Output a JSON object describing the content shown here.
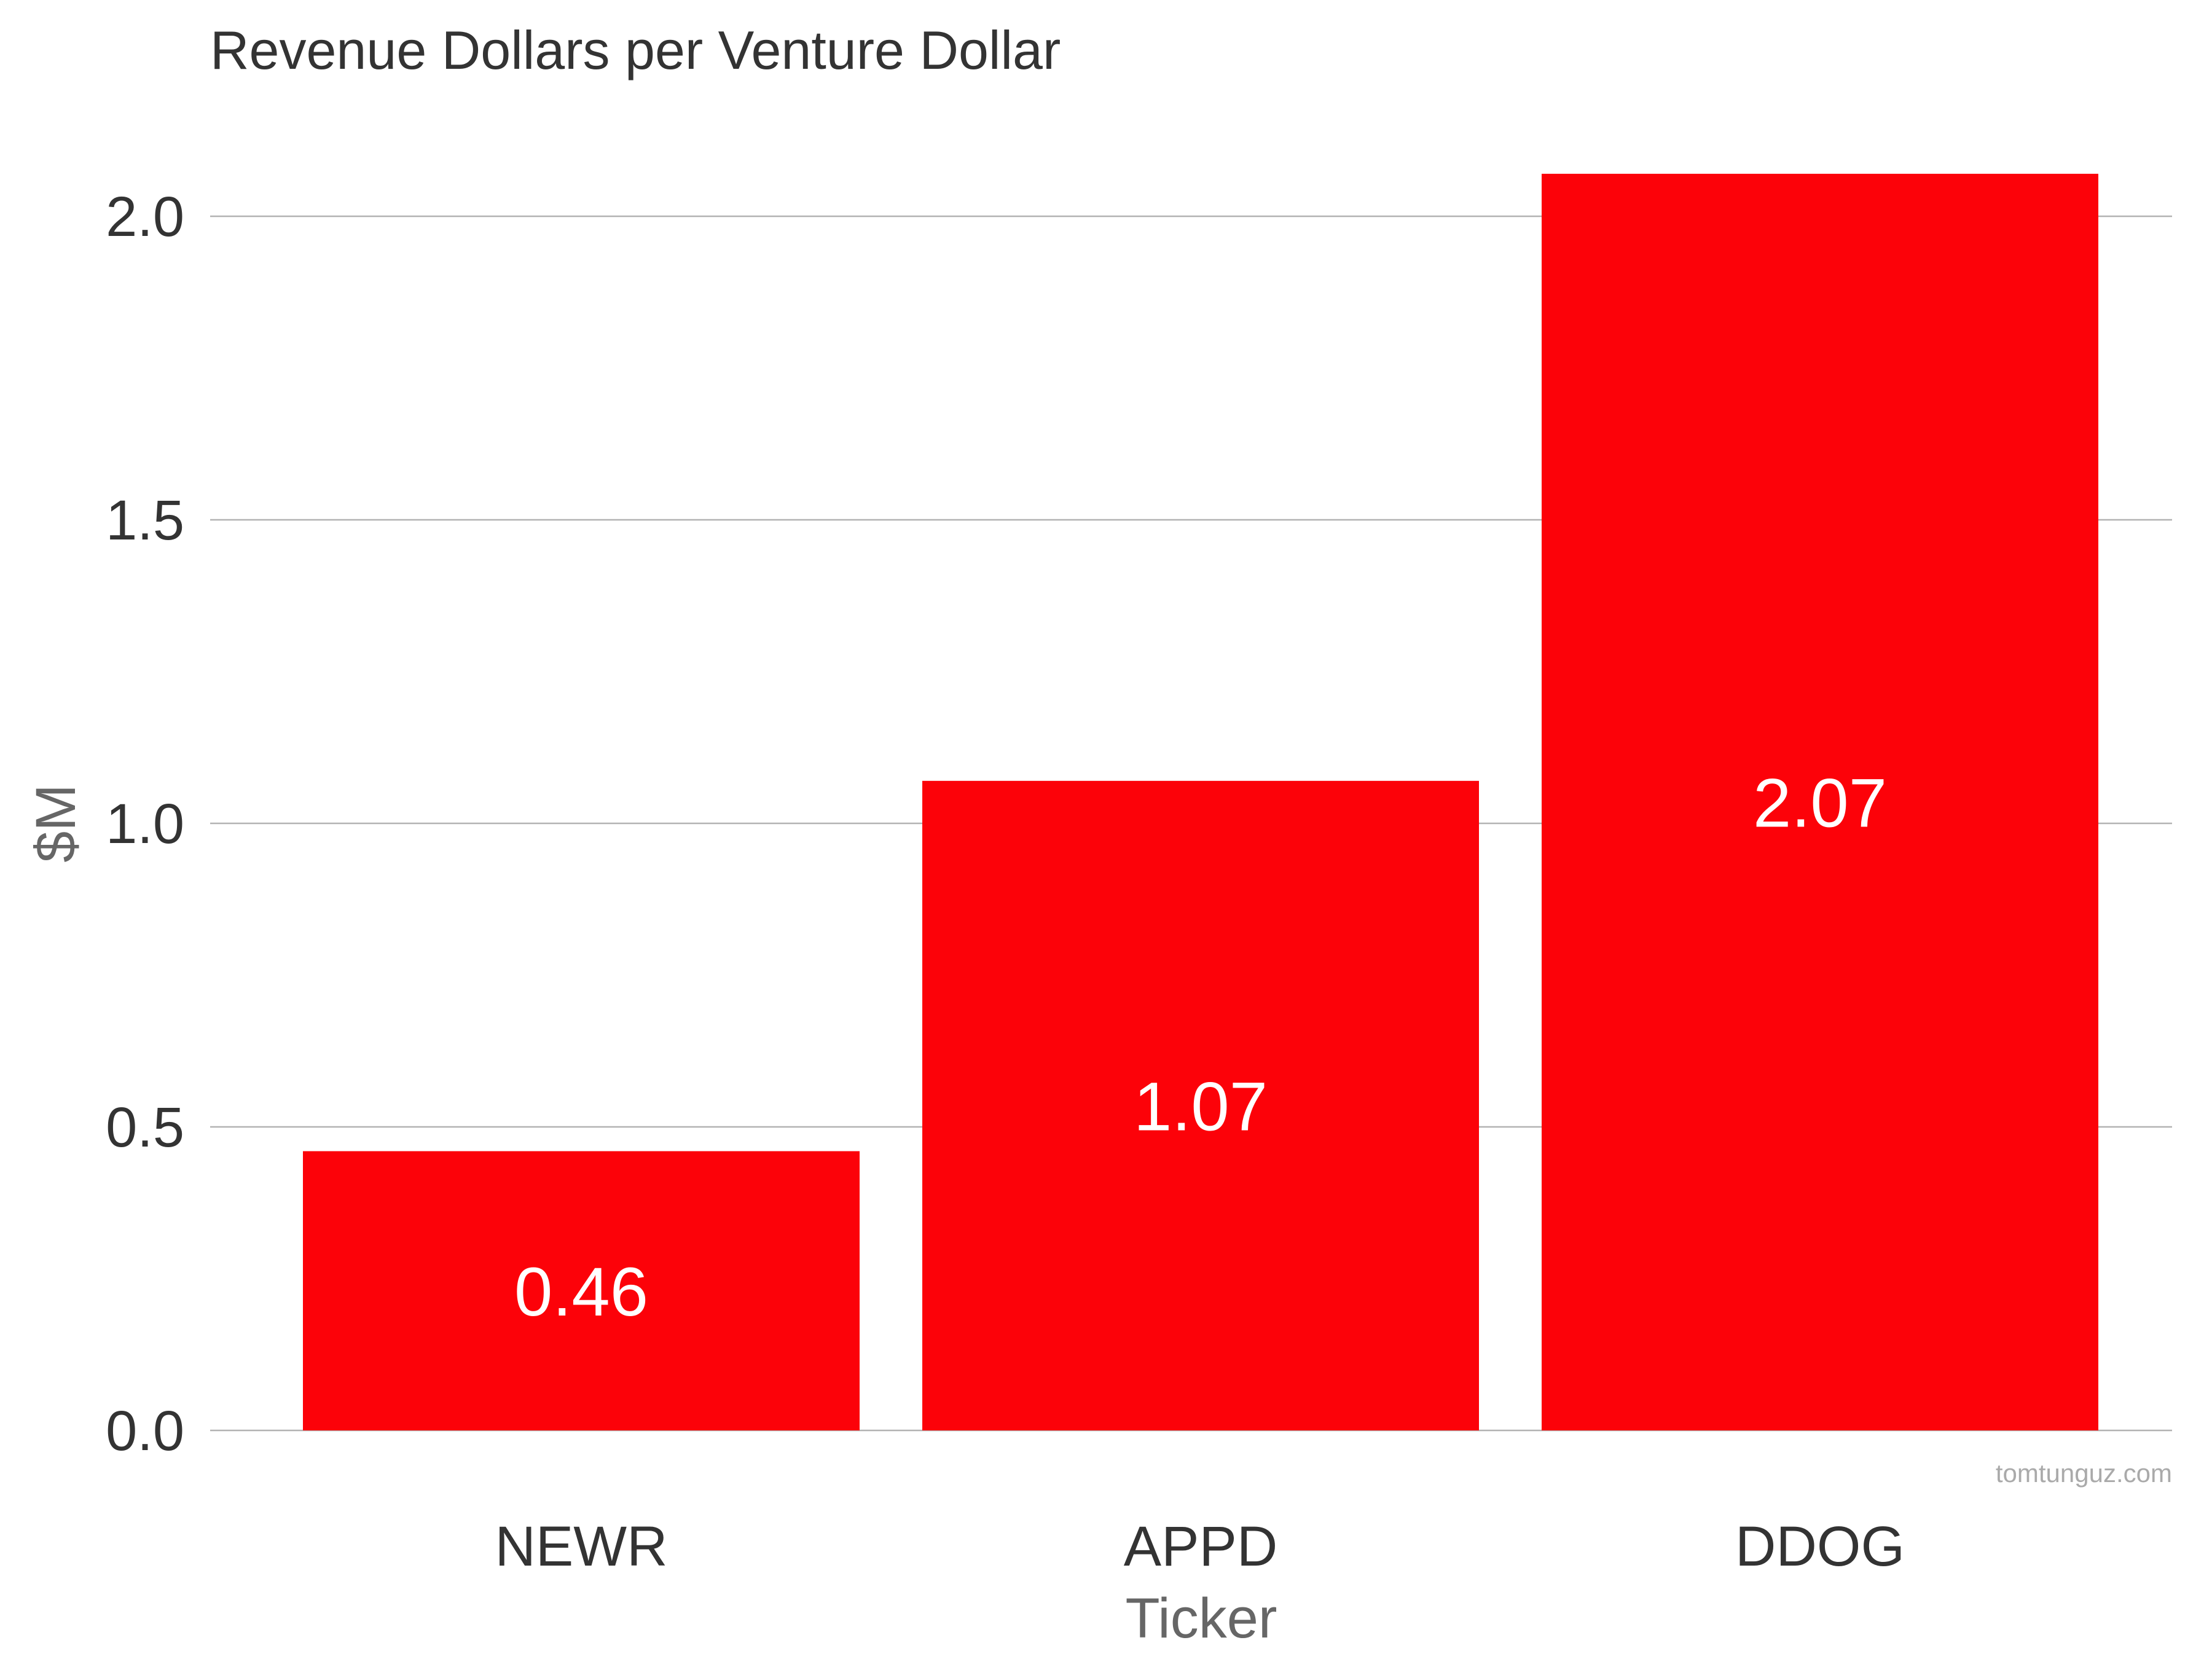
{
  "chart_data": {
    "type": "bar",
    "title": "Revenue Dollars per Venture Dollar",
    "xlabel": "Ticker",
    "ylabel": "$M",
    "categories": [
      "NEWR",
      "APPD",
      "DDOG"
    ],
    "values": [
      0.46,
      1.07,
      2.07
    ],
    "data_labels": [
      "0.46",
      "1.07",
      "2.07"
    ],
    "ylim": [
      0,
      2.15
    ],
    "yticks": [
      0.0,
      0.5,
      1.0,
      1.5,
      2.0
    ],
    "ytick_labels": [
      "0.0",
      "0.5",
      "1.0",
      "1.5",
      "2.0"
    ],
    "grid": true,
    "bar_color": "#fc0209",
    "credit": "tomtunguz.com"
  }
}
